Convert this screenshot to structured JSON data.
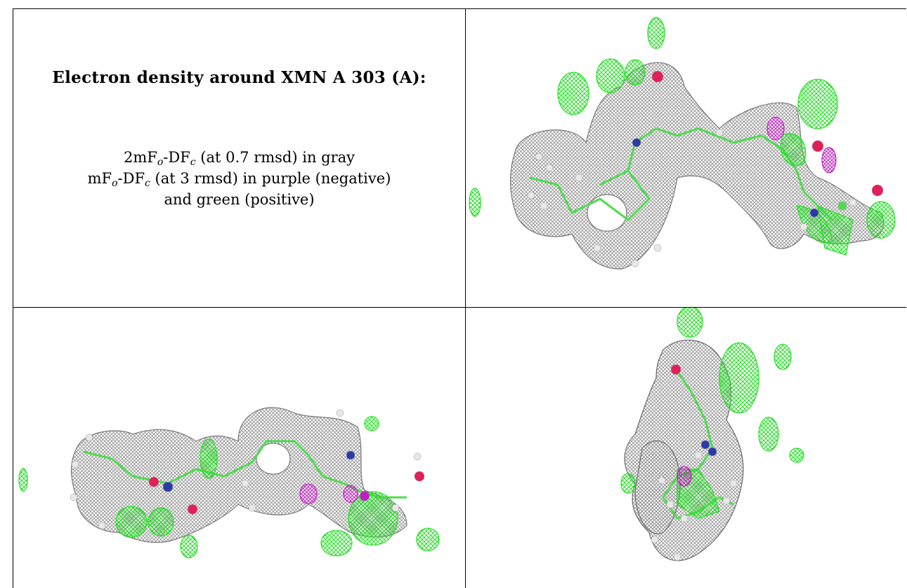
{
  "caption": {
    "title": "Electron density around XMN A 303 (A):",
    "line1_prefix": "2mF",
    "line1_sub1": "o",
    "line1_mid": "-DF",
    "line1_sub2": "c",
    "line1_suffix": " (at 0.7 rmsd) in gray",
    "line2_prefix": "mF",
    "line2_sub1": "o",
    "line2_mid": "-DF",
    "line2_sub2": "c",
    "line2_suffix": " (at 3 rmsd) in purple (negative)",
    "line3": "and green (positive)"
  },
  "colors": {
    "gray_mesh": "#8c8c8c",
    "green_mesh": "#22e022",
    "purple_mesh": "#c020c0",
    "oxygen": "#e0205a",
    "nitrogen": "#2a3aa8",
    "hydrogen": "#e8e8e8",
    "carbon_bond": "#4cdc4c",
    "border": "#000000"
  },
  "panels": [
    {
      "name": "density-view-1",
      "icon": "molecule-density-icon"
    },
    {
      "name": "density-view-2",
      "icon": "molecule-density-icon"
    },
    {
      "name": "density-view-3",
      "icon": "molecule-density-icon"
    }
  ]
}
